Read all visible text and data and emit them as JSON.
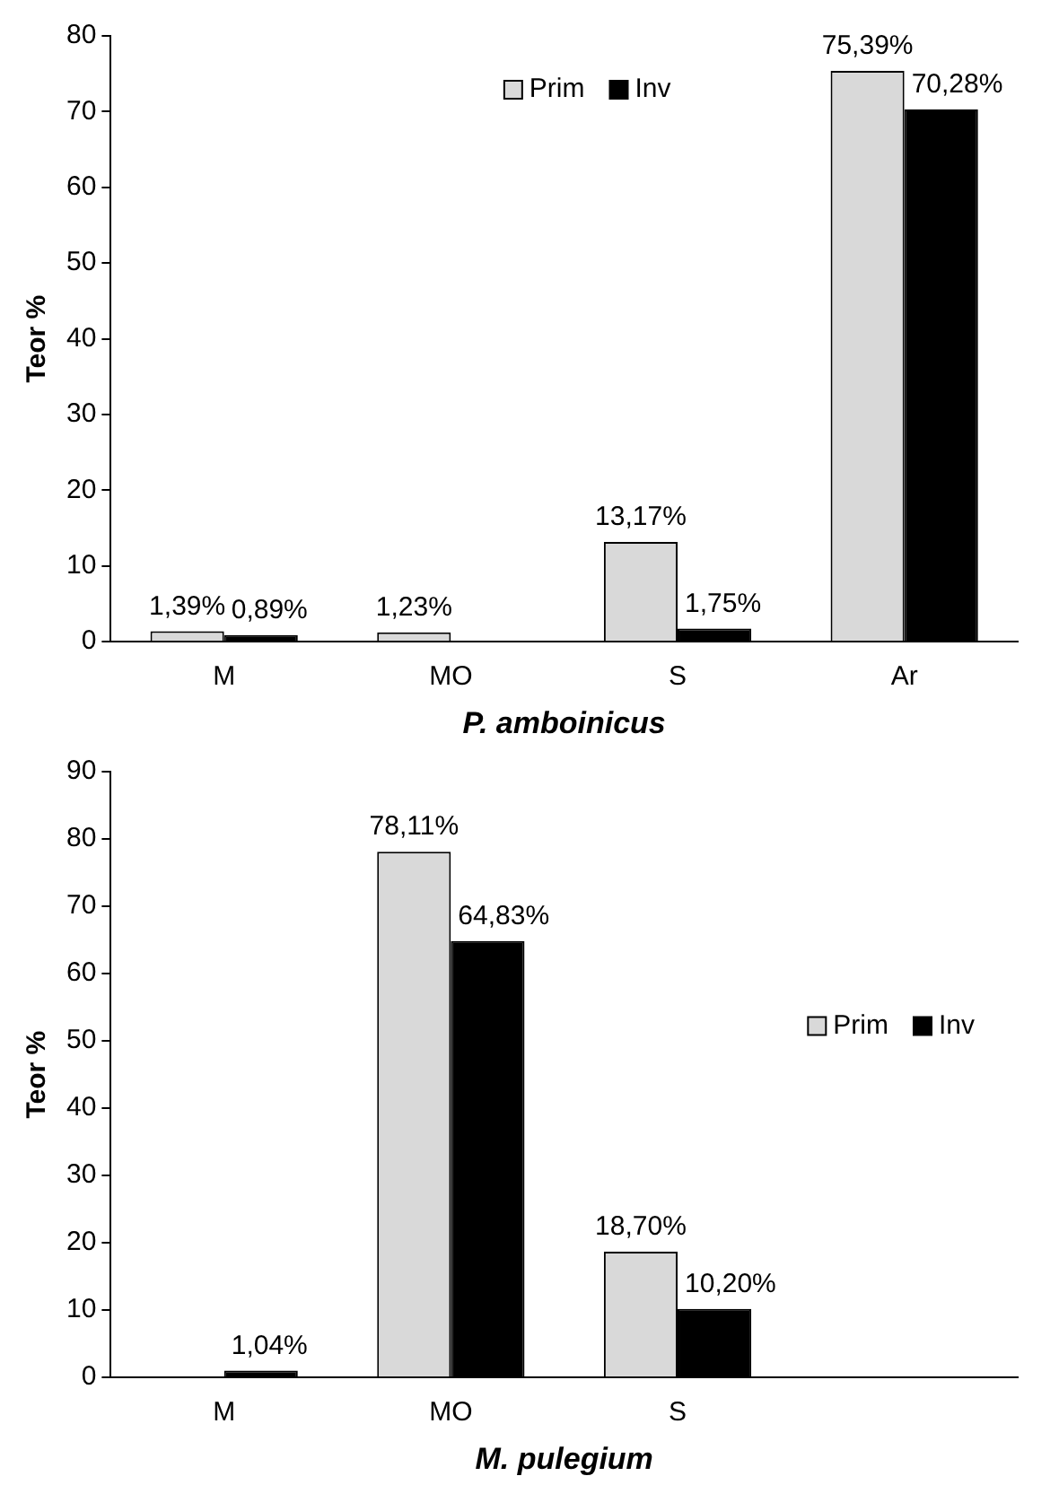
{
  "chart_data": [
    {
      "type": "bar",
      "xlabel": "P. amboinicus",
      "ylabel": "Teor %",
      "categories": [
        "M",
        "MO",
        "S",
        "Ar"
      ],
      "ylim": [
        0,
        80
      ],
      "yticks": [
        0,
        10,
        20,
        30,
        40,
        50,
        60,
        70,
        80
      ],
      "grid": false,
      "legend": "top",
      "series": [
        {
          "name": "Prim",
          "color": "#d9d9d9",
          "values": [
            1.39,
            1.23,
            13.17,
            75.39
          ],
          "value_labels": [
            "1,39%",
            "1,23%",
            "13,17%",
            "75,39%"
          ]
        },
        {
          "name": "Inv",
          "color": "#000000",
          "values": [
            0.89,
            null,
            1.75,
            70.28
          ],
          "value_labels": [
            "0,89%",
            null,
            "1,75%",
            "70,28%"
          ]
        }
      ]
    },
    {
      "type": "bar",
      "xlabel": "M. pulegium",
      "ylabel": "Teor %",
      "categories": [
        "M",
        "MO",
        "S",
        null
      ],
      "ylim": [
        0,
        90
      ],
      "yticks": [
        0,
        10,
        20,
        30,
        40,
        50,
        60,
        70,
        80,
        90
      ],
      "grid": false,
      "legend": "right",
      "series": [
        {
          "name": "Prim",
          "color": "#d9d9d9",
          "values": [
            null,
            78.11,
            18.7,
            null
          ],
          "value_labels": [
            null,
            "78,11%",
            "18,70%",
            null
          ]
        },
        {
          "name": "Inv",
          "color": "#000000",
          "values": [
            1.04,
            64.83,
            10.2,
            null
          ],
          "value_labels": [
            "1,04%",
            "64,83%",
            "10,20%",
            null
          ]
        }
      ]
    }
  ]
}
